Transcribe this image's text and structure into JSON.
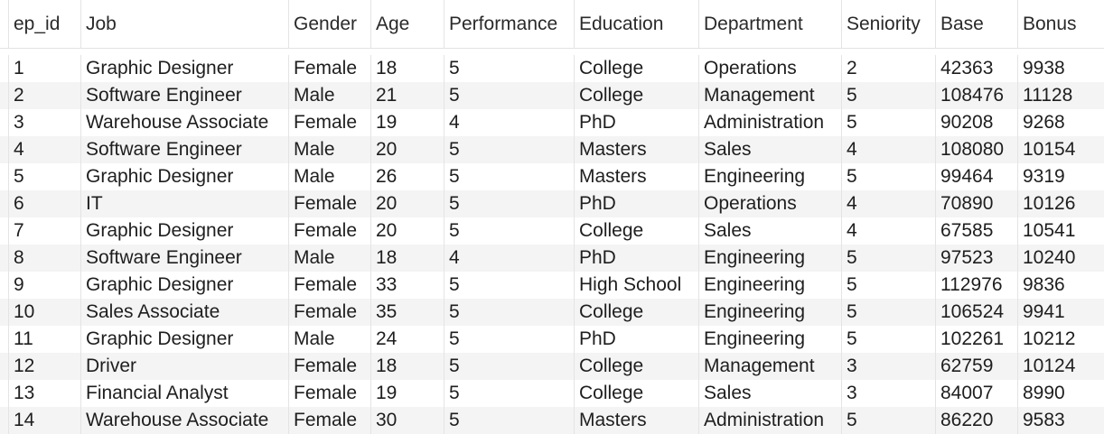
{
  "table": {
    "columns": [
      "ep_id",
      "Job",
      "Gender",
      "Age",
      "Performance",
      "Education",
      "Department",
      "Seniority",
      "Base",
      "Bonus"
    ],
    "rows": [
      [
        "1",
        "Graphic Designer",
        "Female",
        "18",
        "5",
        "College",
        "Operations",
        "2",
        "42363",
        "9938"
      ],
      [
        "2",
        "Software Engineer",
        "Male",
        "21",
        "5",
        "College",
        "Management",
        "5",
        "108476",
        "11128"
      ],
      [
        "3",
        "Warehouse Associate",
        "Female",
        "19",
        "4",
        "PhD",
        "Administration",
        "5",
        "90208",
        "9268"
      ],
      [
        "4",
        "Software Engineer",
        "Male",
        "20",
        "5",
        "Masters",
        "Sales",
        "4",
        "108080",
        "10154"
      ],
      [
        "5",
        "Graphic Designer",
        "Male",
        "26",
        "5",
        "Masters",
        "Engineering",
        "5",
        "99464",
        "9319"
      ],
      [
        "6",
        "IT",
        "Female",
        "20",
        "5",
        "PhD",
        "Operations",
        "4",
        "70890",
        "10126"
      ],
      [
        "7",
        "Graphic Designer",
        "Female",
        "20",
        "5",
        "College",
        "Sales",
        "4",
        "67585",
        "10541"
      ],
      [
        "8",
        "Software Engineer",
        "Male",
        "18",
        "4",
        "PhD",
        "Engineering",
        "5",
        "97523",
        "10240"
      ],
      [
        "9",
        "Graphic Designer",
        "Female",
        "33",
        "5",
        "High School",
        "Engineering",
        "5",
        "112976",
        "9836"
      ],
      [
        "10",
        "Sales Associate",
        "Female",
        "35",
        "5",
        "College",
        "Engineering",
        "5",
        "106524",
        "9941"
      ],
      [
        "11",
        "Graphic Designer",
        "Male",
        "24",
        "5",
        "PhD",
        "Engineering",
        "5",
        "102261",
        "10212"
      ],
      [
        "12",
        "Driver",
        "Female",
        "18",
        "5",
        "College",
        "Management",
        "3",
        "62759",
        "10124"
      ],
      [
        "13",
        "Financial Analyst",
        "Female",
        "19",
        "5",
        "College",
        "Sales",
        "3",
        "84007",
        "8990"
      ],
      [
        "14",
        "Warehouse Associate",
        "Female",
        "30",
        "5",
        "Masters",
        "Administration",
        "5",
        "86220",
        "9583"
      ]
    ]
  },
  "colors": {
    "row_alt": "#f4f4f4",
    "grid_line": "#e4e4e4",
    "text": "#1e1e1e"
  }
}
